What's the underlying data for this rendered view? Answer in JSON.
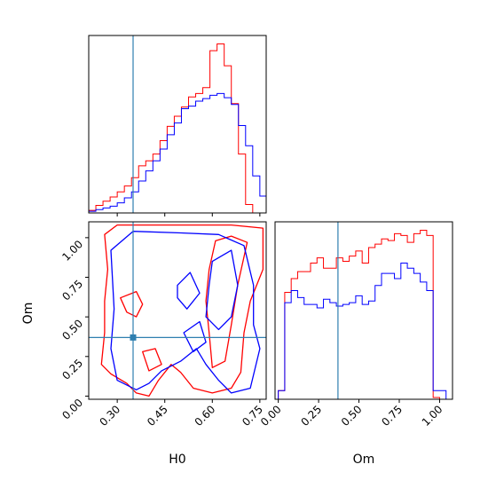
{
  "colors": {
    "red": "#ff0000",
    "blue": "#0000ff",
    "truth": "#2f7fb0",
    "axis": "#000000"
  },
  "chart_data": [
    {
      "panel": "hist-H0",
      "type": "histogram",
      "title": "",
      "xlim": [
        0.21,
        0.77
      ],
      "xticks": [
        0.3,
        0.45,
        0.6,
        0.75
      ],
      "truth": 0.35,
      "bin_edges": [
        0.21,
        0.2325,
        0.255,
        0.2775,
        0.3,
        0.3225,
        0.345,
        0.3675,
        0.39,
        0.4125,
        0.435,
        0.4575,
        0.48,
        0.5025,
        0.525,
        0.5475,
        0.57,
        0.5925,
        0.615,
        0.6375,
        0.66,
        0.6825,
        0.705,
        0.7275,
        0.75,
        0.77
      ],
      "series": [
        {
          "color": "red",
          "values": [
            0.3,
            0.9,
            1.4,
            1.9,
            2.5,
            3.2,
            4.2,
            5.6,
            6.2,
            7.0,
            8.6,
            10.3,
            11.5,
            12.6,
            13.8,
            14.2,
            14.9,
            19.3,
            20.1,
            17.5,
            13.0,
            7.0,
            1.0,
            0,
            0,
            0
          ]
        },
        {
          "color": "blue",
          "values": [
            0.2,
            0.4,
            0.6,
            0.8,
            1.2,
            1.8,
            2.5,
            3.8,
            5.0,
            6.2,
            7.6,
            9.3,
            10.7,
            12.4,
            12.7,
            13.3,
            13.6,
            14.0,
            14.2,
            13.7,
            12.9,
            10.4,
            8.0,
            4.4,
            2.0,
            0
          ]
        }
      ]
    },
    {
      "panel": "contour-H0-Om",
      "type": "contour",
      "xlabel": "H0",
      "ylabel": "Om",
      "xlim": [
        0.21,
        0.77
      ],
      "ylim": [
        -0.02,
        1.1
      ],
      "xticks": [
        "0.30",
        "0.45",
        "0.60",
        "0.75"
      ],
      "yticks": [
        "0.00",
        "0.25",
        "0.50",
        "0.75",
        "1.00"
      ],
      "x_tick_values": [
        0.3,
        0.45,
        0.6,
        0.75
      ],
      "y_tick_values": [
        0.0,
        0.25,
        0.5,
        0.75,
        1.0
      ],
      "truth": [
        0.35,
        0.37
      ],
      "contours": [
        {
          "color": "red",
          "points": [
            [
              0.26,
              1.02
            ],
            [
              0.3,
              1.08
            ],
            [
              0.5,
              1.08
            ],
            [
              0.66,
              1.08
            ],
            [
              0.76,
              1.06
            ],
            [
              0.76,
              0.8
            ],
            [
              0.72,
              0.6
            ],
            [
              0.7,
              0.4
            ],
            [
              0.69,
              0.15
            ],
            [
              0.66,
              0.05
            ],
            [
              0.6,
              0.02
            ],
            [
              0.54,
              0.05
            ],
            [
              0.5,
              0.15
            ],
            [
              0.47,
              0.2
            ],
            [
              0.43,
              0.1
            ],
            [
              0.4,
              0.0
            ],
            [
              0.36,
              0.02
            ],
            [
              0.33,
              0.08
            ],
            [
              0.28,
              0.14
            ],
            [
              0.25,
              0.2
            ],
            [
              0.26,
              0.4
            ],
            [
              0.26,
              0.6
            ],
            [
              0.27,
              0.8
            ],
            [
              0.26,
              1.02
            ]
          ]
        },
        {
          "color": "red",
          "points": [
            [
              0.61,
              0.98
            ],
            [
              0.66,
              1.01
            ],
            [
              0.71,
              0.97
            ],
            [
              0.68,
              0.7
            ],
            [
              0.66,
              0.45
            ],
            [
              0.64,
              0.22
            ],
            [
              0.6,
              0.18
            ],
            [
              0.59,
              0.4
            ],
            [
              0.58,
              0.6
            ],
            [
              0.59,
              0.8
            ],
            [
              0.61,
              0.98
            ]
          ]
        },
        {
          "color": "red",
          "points": [
            [
              0.31,
              0.62
            ],
            [
              0.36,
              0.66
            ],
            [
              0.38,
              0.58
            ],
            [
              0.36,
              0.5
            ],
            [
              0.33,
              0.53
            ],
            [
              0.31,
              0.62
            ]
          ]
        },
        {
          "color": "red",
          "points": [
            [
              0.38,
              0.28
            ],
            [
              0.42,
              0.3
            ],
            [
              0.44,
              0.2
            ],
            [
              0.4,
              0.16
            ],
            [
              0.38,
              0.28
            ]
          ]
        },
        {
          "color": "blue",
          "points": [
            [
              0.28,
              0.92
            ],
            [
              0.35,
              1.04
            ],
            [
              0.5,
              1.03
            ],
            [
              0.62,
              1.02
            ],
            [
              0.7,
              0.95
            ],
            [
              0.73,
              0.7
            ],
            [
              0.73,
              0.45
            ],
            [
              0.75,
              0.3
            ],
            [
              0.72,
              0.05
            ],
            [
              0.66,
              0.02
            ],
            [
              0.62,
              0.1
            ],
            [
              0.58,
              0.2
            ],
            [
              0.55,
              0.3
            ],
            [
              0.5,
              0.22
            ],
            [
              0.44,
              0.16
            ],
            [
              0.4,
              0.08
            ],
            [
              0.36,
              0.04
            ],
            [
              0.3,
              0.1
            ],
            [
              0.28,
              0.3
            ],
            [
              0.29,
              0.55
            ],
            [
              0.28,
              0.92
            ]
          ]
        },
        {
          "color": "blue",
          "points": [
            [
              0.6,
              0.85
            ],
            [
              0.66,
              0.92
            ],
            [
              0.68,
              0.7
            ],
            [
              0.66,
              0.5
            ],
            [
              0.62,
              0.42
            ],
            [
              0.58,
              0.5
            ],
            [
              0.59,
              0.7
            ],
            [
              0.6,
              0.85
            ]
          ]
        },
        {
          "color": "blue",
          "points": [
            [
              0.49,
              0.7
            ],
            [
              0.53,
              0.78
            ],
            [
              0.56,
              0.65
            ],
            [
              0.52,
              0.55
            ],
            [
              0.49,
              0.62
            ],
            [
              0.49,
              0.7
            ]
          ]
        },
        {
          "color": "blue",
          "points": [
            [
              0.51,
              0.4
            ],
            [
              0.56,
              0.47
            ],
            [
              0.58,
              0.34
            ],
            [
              0.54,
              0.28
            ],
            [
              0.51,
              0.4
            ]
          ]
        }
      ]
    },
    {
      "panel": "hist-Om",
      "type": "histogram",
      "xlabel": "Om",
      "xlim": [
        -0.02,
        1.08
      ],
      "xticks": [
        "0.00",
        "0.25",
        "0.50",
        "0.75",
        "1.00"
      ],
      "x_tick_values": [
        0.0,
        0.25,
        0.5,
        0.75,
        1.0
      ],
      "truth": 0.37,
      "bin_edges": [
        0.0,
        0.04,
        0.08,
        0.12,
        0.16,
        0.2,
        0.24,
        0.28,
        0.32,
        0.36,
        0.4,
        0.44,
        0.48,
        0.52,
        0.56,
        0.6,
        0.64,
        0.68,
        0.72,
        0.76,
        0.8,
        0.84,
        0.88,
        0.92,
        0.96,
        1.0,
        1.04
      ],
      "series": [
        {
          "color": "red",
          "values": [
            0.5,
            6.2,
            7.0,
            7.4,
            7.4,
            7.9,
            8.2,
            7.6,
            7.6,
            8.2,
            8.0,
            8.3,
            8.6,
            7.9,
            8.8,
            9.0,
            9.3,
            9.2,
            9.6,
            9.5,
            9.1,
            9.6,
            9.8,
            9.5,
            0.1,
            0
          ]
        },
        {
          "color": "blue",
          "values": [
            0.5,
            5.6,
            6.3,
            5.9,
            5.5,
            5.5,
            5.3,
            5.8,
            5.6,
            5.4,
            5.5,
            5.6,
            6.0,
            5.5,
            5.7,
            6.6,
            7.3,
            7.3,
            7.0,
            7.9,
            7.6,
            7.3,
            6.8,
            6.3,
            0.5,
            0.5
          ]
        }
      ]
    }
  ]
}
